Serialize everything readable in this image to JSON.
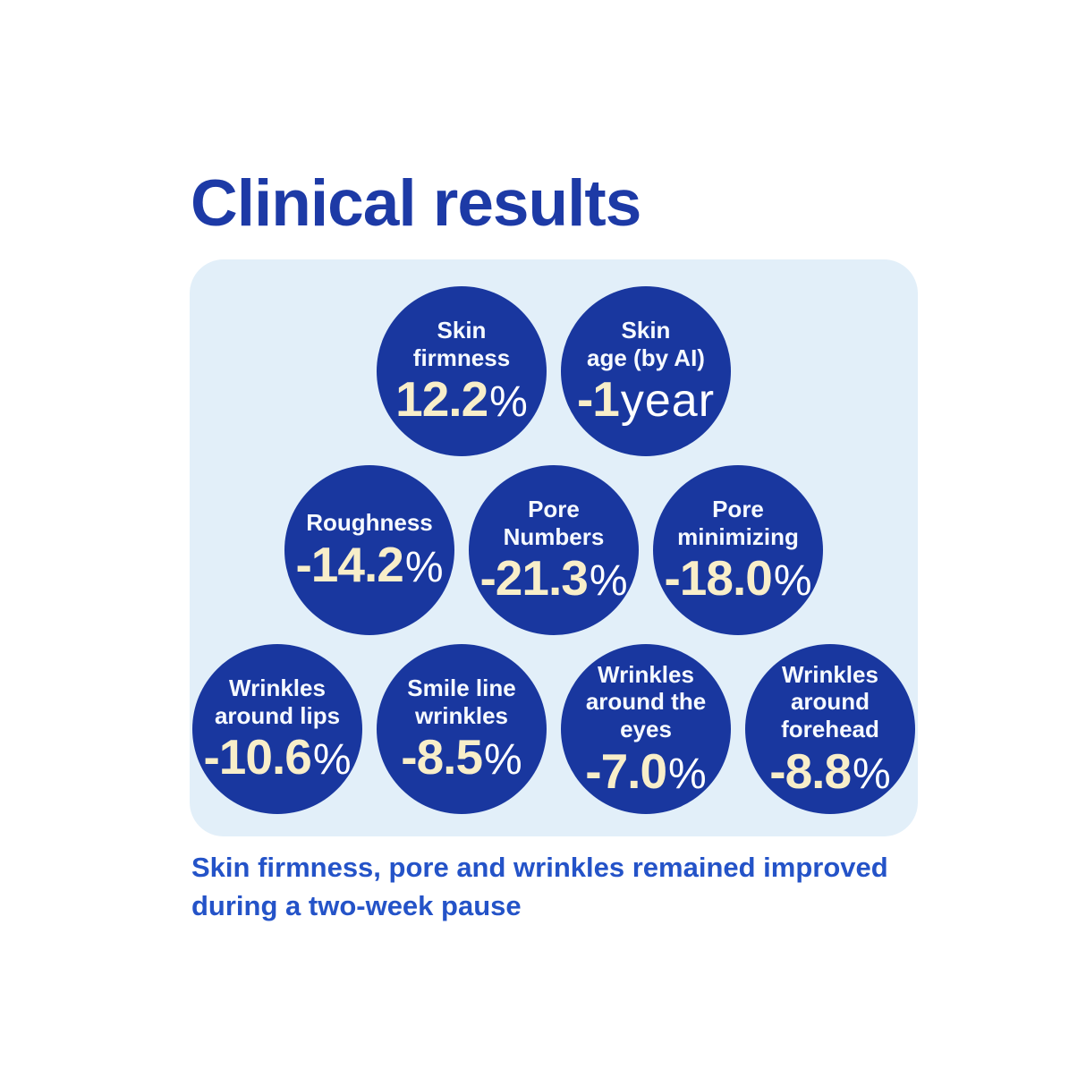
{
  "page": {
    "title": "Clinical results",
    "caption": "Skin firmness, pore and wrinkles remained improved\nduring a two-week pause"
  },
  "colors": {
    "page_bg": "#ffffff",
    "title_blue": "#1d3aa6",
    "panel_bg": "#e2eff9",
    "bubble_blue": "#19379f",
    "value_cream": "#f8eec9",
    "unit_white": "#ffffff",
    "caption_blue": "#2453c8"
  },
  "circles": [
    {
      "label": "Skin\nfirmness",
      "value": "12.2",
      "unit": "%"
    },
    {
      "label": "Skin\nage (by AI)",
      "value": "-1",
      "unit": "year"
    },
    {
      "label": "Roughness",
      "value": "-14.2",
      "unit": "%"
    },
    {
      "label": "Pore\nNumbers",
      "value": "-21.3",
      "unit": "%"
    },
    {
      "label": "Pore\nminimizing",
      "value": "-18.0",
      "unit": "%"
    },
    {
      "label": "Wrinkles\naround lips",
      "value": "-10.6",
      "unit": "%"
    },
    {
      "label": "Smile line\nwrinkles",
      "value": "-8.5",
      "unit": "%"
    },
    {
      "label": "Wrinkles\naround the\neyes",
      "value": "-7.0",
      "unit": "%"
    },
    {
      "label": "Wrinkles\naround\nforehead",
      "value": "-8.8",
      "unit": "%"
    }
  ],
  "chart_data": {
    "type": "bubble",
    "title": "Clinical results",
    "categories": [
      "Skin firmness",
      "Skin age (by AI)",
      "Roughness",
      "Pore Numbers",
      "Pore minimizing",
      "Wrinkles around lips",
      "Smile line wrinkles",
      "Wrinkles around the eyes",
      "Wrinkles around forehead"
    ],
    "values": [
      12.2,
      -1,
      -14.2,
      -21.3,
      -18.0,
      -10.6,
      -8.5,
      -7.0,
      -8.8
    ],
    "units": [
      "%",
      "year",
      "%",
      "%",
      "%",
      "%",
      "%",
      "%",
      "%"
    ],
    "annotation": "Skin firmness, pore and wrinkles remained improved during a two-week pause",
    "layout": "pyramid of equal-size bubbles in rows of 2, 3 and 4",
    "legend_position": "none",
    "grid": false
  }
}
